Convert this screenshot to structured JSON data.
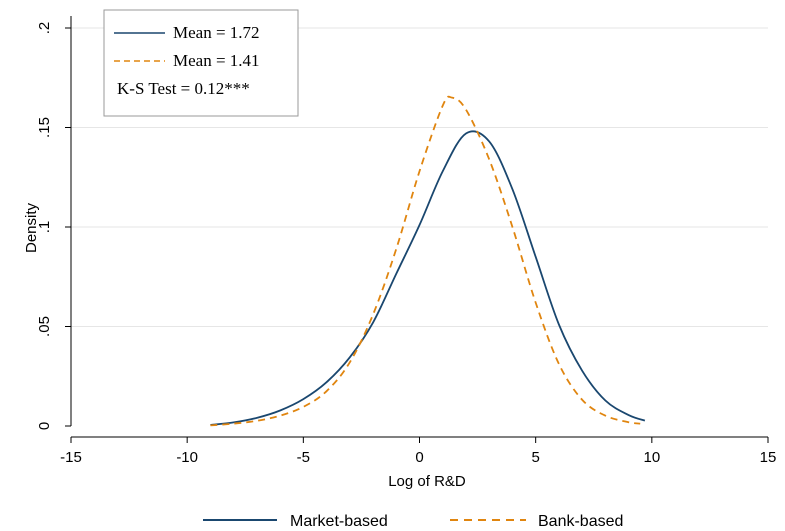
{
  "chart_data": {
    "type": "line",
    "xlabel": "Log of R&D",
    "ylabel": "Density",
    "xlim": [
      -15,
      15
    ],
    "ylim": [
      0,
      0.2
    ],
    "x_ticks": [
      -15,
      -10,
      -5,
      0,
      5,
      10,
      15
    ],
    "x_tick_labels": [
      "-15",
      "-10",
      "-5",
      "0",
      "5",
      "10",
      "15"
    ],
    "y_ticks": [
      0,
      0.05,
      0.1,
      0.15,
      0.2
    ],
    "y_tick_labels": [
      "0",
      ".05",
      ".1",
      ".15",
      ".2"
    ],
    "grid": "horizontal",
    "series": [
      {
        "name": "Market-based",
        "color": "#1a476f",
        "dash": "solid",
        "x": [
          -9.0,
          -8.0,
          -7.0,
          -6.0,
          -5.0,
          -4.0,
          -3.0,
          -2.0,
          -1.0,
          0.0,
          1.0,
          2.0,
          3.0,
          4.0,
          5.0,
          6.0,
          7.0,
          8.0,
          9.0,
          9.7
        ],
        "y": [
          0.0005,
          0.0018,
          0.0041,
          0.0078,
          0.0135,
          0.022,
          0.0345,
          0.052,
          0.0765,
          0.101,
          0.128,
          0.147,
          0.143,
          0.119,
          0.085,
          0.051,
          0.0278,
          0.0128,
          0.0055,
          0.0027
        ]
      },
      {
        "name": "Bank-based",
        "color": "#e0850f",
        "dash": "dashed",
        "x": [
          -9.0,
          -8.0,
          -7.0,
          -6.0,
          -5.0,
          -4.0,
          -3.0,
          -2.0,
          -1.0,
          0.0,
          1.0,
          1.4,
          2.0,
          3.0,
          4.0,
          5.0,
          6.0,
          7.0,
          8.0,
          9.0,
          9.5
        ],
        "y": [
          0.0003,
          0.0012,
          0.0026,
          0.0052,
          0.0096,
          0.0175,
          0.032,
          0.056,
          0.089,
          0.128,
          0.161,
          0.165,
          0.159,
          0.134,
          0.1,
          0.062,
          0.0312,
          0.0132,
          0.0052,
          0.0019,
          0.0012
        ]
      }
    ],
    "annotation_box": {
      "lines": [
        "Mean = 1.72",
        "Mean = 1.41",
        "K-S Test = 0.12***"
      ]
    },
    "legend": {
      "position": "bottom",
      "entries": [
        "Market-based",
        "Bank-based"
      ]
    }
  }
}
